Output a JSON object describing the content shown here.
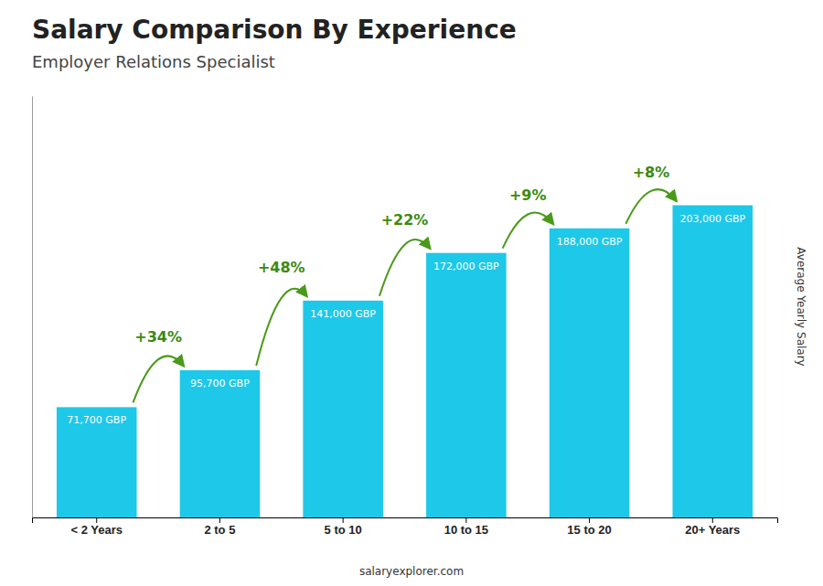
{
  "chart_data": {
    "type": "bar",
    "title": "Salary Comparison By Experience",
    "subtitle": "Employer Relations Specialist",
    "categories": [
      "< 2 Years",
      "2 to 5",
      "5 to 10",
      "10 to 15",
      "15 to 20",
      "20+ Years"
    ],
    "values": [
      71700,
      95700,
      141000,
      172000,
      188000,
      203000
    ],
    "value_labels": [
      "71,700 GBP",
      "95,700 GBP",
      "141,000 GBP",
      "172,000 GBP",
      "188,000 GBP",
      "203,000 GBP"
    ],
    "data_labels": true,
    "annotations": [
      "+34%",
      "+48%",
      "+22%",
      "+9%",
      "+8%"
    ],
    "ylabel": "Average Yearly Salary",
    "footer": "salaryexplorer.com",
    "color": "#1EC8E8",
    "ylim": [
      0,
      274050
    ],
    "tick_labels": "x",
    "grid": false
  }
}
